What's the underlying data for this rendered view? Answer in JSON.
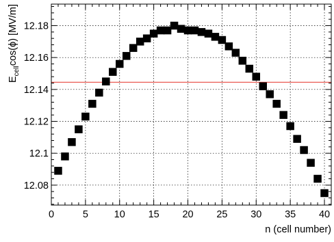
{
  "chart_data": {
    "type": "scatter",
    "xlabel": "n (cell number)",
    "ylabel": {
      "prefix": "E",
      "subscript": "cell",
      "rest": "cos(ϕ) [MV/m]"
    },
    "xlim": [
      0,
      41
    ],
    "ylim": [
      12.0675,
      12.1935
    ],
    "x_ticks": [
      0,
      5,
      10,
      15,
      20,
      25,
      30,
      35,
      40
    ],
    "y_ticks": [
      12.08,
      12.1,
      12.12,
      12.14,
      12.16,
      12.18
    ],
    "x_tick_labels": [
      "0",
      "5",
      "10",
      "15",
      "20",
      "25",
      "30",
      "35",
      "40"
    ],
    "y_tick_labels": [
      "12.08",
      "12.1",
      "12.12",
      "12.14",
      "12.16",
      "12.18"
    ],
    "grid": true,
    "series": [
      {
        "marker": "square",
        "color": "#000000",
        "points": [
          {
            "x": 1,
            "y": 12.089
          },
          {
            "x": 2,
            "y": 12.098
          },
          {
            "x": 3,
            "y": 12.107
          },
          {
            "x": 4,
            "y": 12.115
          },
          {
            "x": 5,
            "y": 12.123
          },
          {
            "x": 6,
            "y": 12.131
          },
          {
            "x": 7,
            "y": 12.138
          },
          {
            "x": 8,
            "y": 12.145
          },
          {
            "x": 9,
            "y": 12.151
          },
          {
            "x": 10,
            "y": 12.156
          },
          {
            "x": 11,
            "y": 12.161
          },
          {
            "x": 12,
            "y": 12.166
          },
          {
            "x": 13,
            "y": 12.17
          },
          {
            "x": 14,
            "y": 12.172
          },
          {
            "x": 15,
            "y": 12.175
          },
          {
            "x": 16,
            "y": 12.177
          },
          {
            "x": 17,
            "y": 12.177
          },
          {
            "x": 18,
            "y": 12.18
          },
          {
            "x": 19,
            "y": 12.178
          },
          {
            "x": 20,
            "y": 12.177
          },
          {
            "x": 21,
            "y": 12.177
          },
          {
            "x": 22,
            "y": 12.176
          },
          {
            "x": 23,
            "y": 12.175
          },
          {
            "x": 24,
            "y": 12.173
          },
          {
            "x": 25,
            "y": 12.171
          },
          {
            "x": 26,
            "y": 12.167
          },
          {
            "x": 27,
            "y": 12.163
          },
          {
            "x": 28,
            "y": 12.158
          },
          {
            "x": 29,
            "y": 12.153
          },
          {
            "x": 30,
            "y": 12.148
          },
          {
            "x": 31,
            "y": 12.142
          },
          {
            "x": 32,
            "y": 12.137
          },
          {
            "x": 33,
            "y": 12.131
          },
          {
            "x": 34,
            "y": 12.124
          },
          {
            "x": 35,
            "y": 12.117
          },
          {
            "x": 36,
            "y": 12.109
          },
          {
            "x": 37,
            "y": 12.102
          },
          {
            "x": 38,
            "y": 12.094
          },
          {
            "x": 39,
            "y": 12.084
          },
          {
            "x": 40,
            "y": 12.075
          }
        ]
      }
    ],
    "reference_lines": [
      {
        "orientation": "horizontal",
        "y": 12.1445,
        "color": "#e8473f"
      }
    ]
  }
}
